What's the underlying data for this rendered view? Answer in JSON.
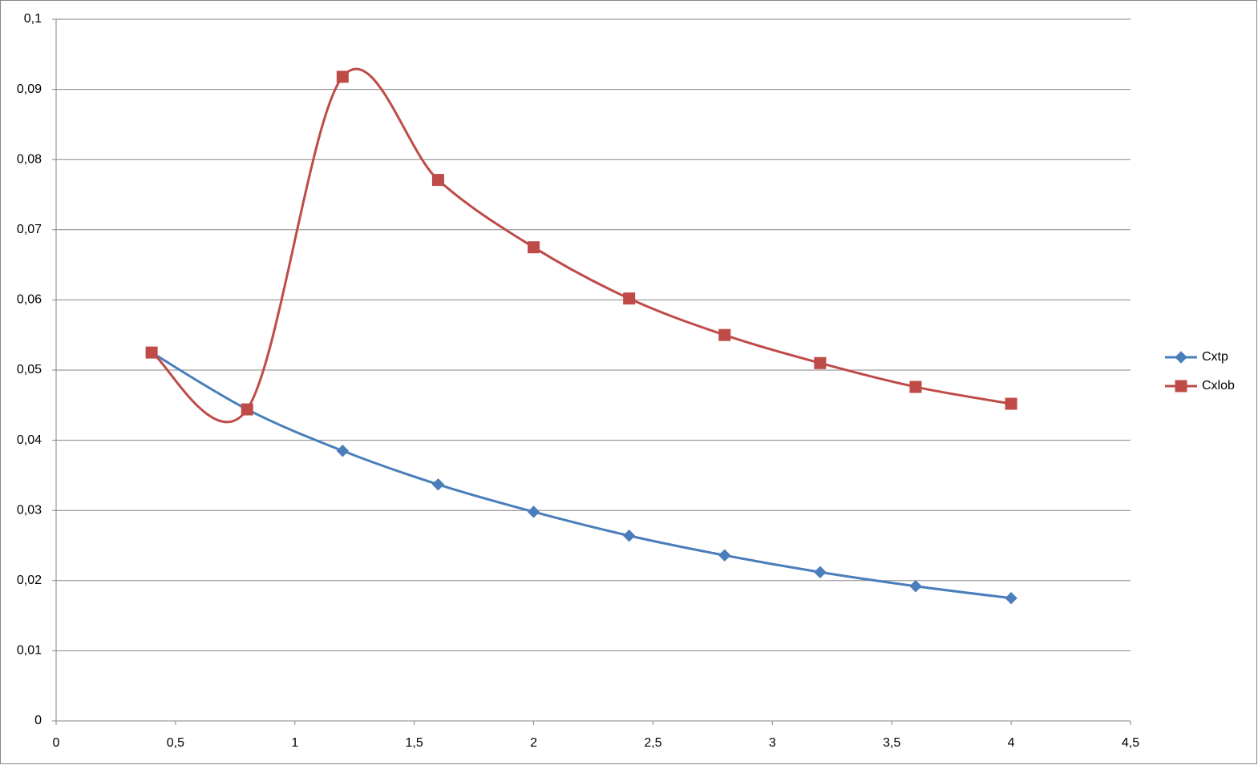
{
  "chart_data": {
    "type": "scatter",
    "smooth": true,
    "grid": true,
    "legend_position": "right",
    "x": [
      0.4,
      0.8,
      1.2,
      1.6,
      2.0,
      2.4,
      2.8,
      3.2,
      3.6,
      4.0
    ],
    "series": [
      {
        "name": "Cxtp",
        "color": "#4a7ebb",
        "marker": "diamond",
        "values": [
          0.0525,
          0.0444,
          0.0385,
          0.0337,
          0.0298,
          0.0264,
          0.0236,
          0.0212,
          0.0192,
          0.0175
        ]
      },
      {
        "name": "Cxlob",
        "color": "#be4b48",
        "marker": "square",
        "values": [
          0.0525,
          0.0444,
          0.0918,
          0.0771,
          0.0675,
          0.0602,
          0.055,
          0.051,
          0.0476,
          0.0452
        ]
      }
    ],
    "xlim": [
      0,
      4.5
    ],
    "xticks": [
      0,
      {
        "value": 0.5,
        "label": "0,5"
      },
      1,
      {
        "value": 1.5,
        "label": "1,5"
      },
      2,
      {
        "value": 2.5,
        "label": "2,5"
      },
      3,
      {
        "value": 3.5,
        "label": "3,5"
      },
      4,
      {
        "value": 4.5,
        "label": "4,5"
      }
    ],
    "ylim": [
      0,
      0.1
    ],
    "yticks": [
      0,
      {
        "value": 0.01,
        "label": "0,01"
      },
      {
        "value": 0.02,
        "label": "0,02"
      },
      {
        "value": 0.03,
        "label": "0,03"
      },
      {
        "value": 0.04,
        "label": "0,04"
      },
      {
        "value": 0.05,
        "label": "0,05"
      },
      {
        "value": 0.06,
        "label": "0,06"
      },
      {
        "value": 0.07,
        "label": "0,07"
      },
      {
        "value": 0.08,
        "label": "0,08"
      },
      {
        "value": 0.09,
        "label": "0,09"
      },
      {
        "value": 0.1,
        "label": "0,1"
      }
    ]
  }
}
